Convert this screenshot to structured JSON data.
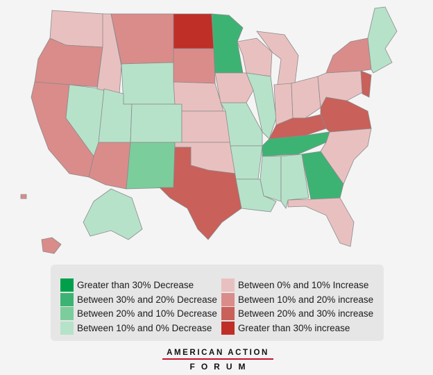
{
  "legend": {
    "items": [
      {
        "label": "Greater than 30% Decrease",
        "color": "#00a04a"
      },
      {
        "label": "Between 30% and 20% Decrease",
        "color": "#3db373"
      },
      {
        "label": "Between 20% and 10% Decrease",
        "color": "#7ccd9c"
      },
      {
        "label": "Between 10% and 0% Decrease",
        "color": "#b6e2c9"
      },
      {
        "label": "Between 0% and 10% Increase",
        "color": "#e9c0c0"
      },
      {
        "label": "Between 10% and 20% increase",
        "color": "#da8c8a"
      },
      {
        "label": "Between 20% and 30% increase",
        "color": "#c9605a"
      },
      {
        "label": "Greater than 30% increase",
        "color": "#bf2f27"
      }
    ]
  },
  "logo": {
    "line1": "AMERICAN ACTION",
    "line2": "FORUM"
  }
}
